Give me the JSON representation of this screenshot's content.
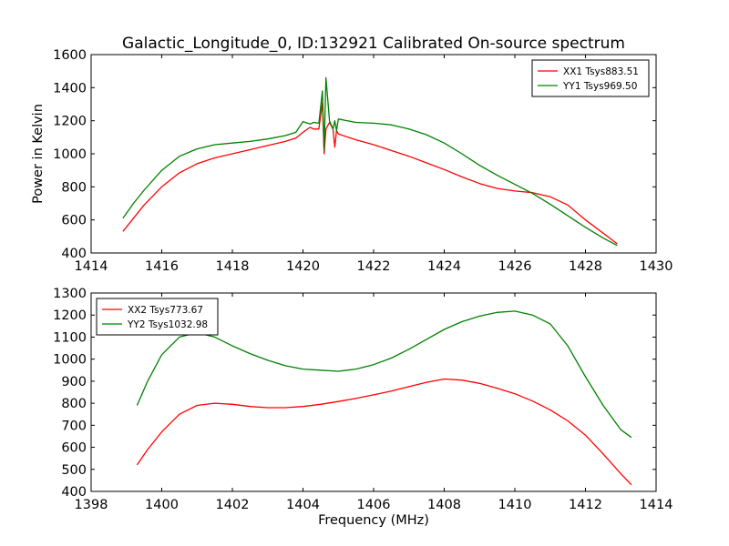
{
  "title": "Galactic_Longitude_0, ID:132921 Calibrated On-source spectrum",
  "chart_data": [
    {
      "type": "line",
      "title": "Galactic_Longitude_0, ID:132921 Calibrated On-source spectrum",
      "xlabel": "",
      "ylabel": "Power in Kelvin",
      "xlim": [
        1414,
        1430
      ],
      "ylim": [
        400,
        1600
      ],
      "xticks": [
        1414,
        1416,
        1418,
        1420,
        1422,
        1424,
        1426,
        1428,
        1430
      ],
      "yticks": [
        400,
        600,
        800,
        1000,
        1200,
        1400,
        1600
      ],
      "grid": false,
      "legend_position": "top-right",
      "series": [
        {
          "name": "XX1 Tsys883.51",
          "color": "#ff0000",
          "x": [
            1414.9,
            1415.2,
            1415.5,
            1416.0,
            1416.5,
            1417.0,
            1417.5,
            1418.0,
            1418.5,
            1419.0,
            1419.5,
            1419.8,
            1420.0,
            1420.2,
            1420.3,
            1420.45,
            1420.55,
            1420.6,
            1420.65,
            1420.75,
            1420.85,
            1420.9,
            1420.95,
            1421.0,
            1421.5,
            1422.0,
            1422.5,
            1423.0,
            1423.5,
            1424.0,
            1424.5,
            1425.0,
            1425.5,
            1426.0,
            1426.5,
            1427.0,
            1427.5,
            1428.0,
            1428.5,
            1428.9
          ],
          "values": [
            530,
            610,
            690,
            800,
            885,
            940,
            975,
            1000,
            1025,
            1050,
            1075,
            1095,
            1130,
            1160,
            1150,
            1150,
            1310,
            1000,
            1150,
            1190,
            1150,
            1040,
            1140,
            1120,
            1085,
            1055,
            1020,
            985,
            945,
            905,
            860,
            820,
            790,
            775,
            765,
            740,
            690,
            600,
            520,
            455
          ]
        },
        {
          "name": "YY1 Tsys969.50",
          "color": "#008000",
          "x": [
            1414.9,
            1415.2,
            1415.5,
            1416.0,
            1416.5,
            1417.0,
            1417.5,
            1418.0,
            1418.5,
            1419.0,
            1419.5,
            1419.8,
            1420.0,
            1420.2,
            1420.3,
            1420.45,
            1420.55,
            1420.6,
            1420.65,
            1420.75,
            1420.85,
            1420.9,
            1420.95,
            1421.0,
            1421.5,
            1422.0,
            1422.5,
            1423.0,
            1423.5,
            1424.0,
            1424.5,
            1425.0,
            1425.5,
            1426.0,
            1426.5,
            1427.0,
            1427.5,
            1428.0,
            1428.5,
            1428.9
          ],
          "values": [
            610,
            700,
            780,
            900,
            985,
            1030,
            1055,
            1065,
            1075,
            1090,
            1110,
            1130,
            1195,
            1180,
            1190,
            1185,
            1380,
            1020,
            1460,
            1200,
            1150,
            1200,
            1140,
            1210,
            1190,
            1185,
            1175,
            1150,
            1115,
            1065,
            1000,
            930,
            870,
            815,
            760,
            695,
            625,
            555,
            490,
            445
          ]
        }
      ]
    },
    {
      "type": "line",
      "title": "",
      "xlabel": "Frequency (MHz)",
      "ylabel": "",
      "xlim": [
        1398,
        1414
      ],
      "ylim": [
        400,
        1300
      ],
      "xticks": [
        1398,
        1400,
        1402,
        1404,
        1406,
        1408,
        1410,
        1412,
        1414
      ],
      "yticks": [
        400,
        500,
        600,
        700,
        800,
        900,
        1000,
        1100,
        1200,
        1300
      ],
      "grid": false,
      "legend_position": "top-left",
      "series": [
        {
          "name": "XX2 Tsys773.67",
          "color": "#ff0000",
          "x": [
            1399.3,
            1399.6,
            1400.0,
            1400.5,
            1401.0,
            1401.5,
            1402.0,
            1402.5,
            1403.0,
            1403.5,
            1404.0,
            1404.5,
            1405.0,
            1405.5,
            1406.0,
            1406.5,
            1407.0,
            1407.5,
            1408.0,
            1408.5,
            1409.0,
            1409.5,
            1410.0,
            1410.5,
            1411.0,
            1411.5,
            1412.0,
            1412.5,
            1413.0,
            1413.3
          ],
          "values": [
            520,
            590,
            670,
            750,
            790,
            800,
            795,
            785,
            780,
            780,
            785,
            795,
            808,
            822,
            838,
            855,
            875,
            895,
            910,
            905,
            890,
            868,
            843,
            810,
            770,
            720,
            655,
            570,
            480,
            430
          ]
        },
        {
          "name": "YY2 Tsys1032.98",
          "color": "#008000",
          "x": [
            1399.3,
            1399.6,
            1400.0,
            1400.5,
            1401.0,
            1401.5,
            1402.0,
            1402.5,
            1403.0,
            1403.5,
            1404.0,
            1404.5,
            1405.0,
            1405.5,
            1406.0,
            1406.5,
            1407.0,
            1407.5,
            1408.0,
            1408.5,
            1409.0,
            1409.5,
            1410.0,
            1410.5,
            1411.0,
            1411.5,
            1412.0,
            1412.5,
            1413.0,
            1413.3
          ],
          "values": [
            790,
            900,
            1020,
            1100,
            1120,
            1100,
            1060,
            1025,
            995,
            970,
            955,
            950,
            945,
            955,
            975,
            1005,
            1045,
            1090,
            1135,
            1170,
            1195,
            1212,
            1218,
            1200,
            1160,
            1060,
            920,
            790,
            680,
            645
          ]
        }
      ]
    }
  ]
}
